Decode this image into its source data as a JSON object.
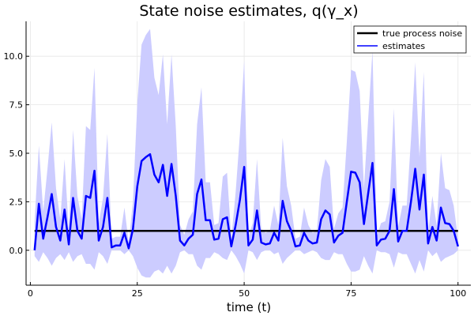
{
  "chart_data": {
    "type": "line",
    "title": "State noise estimates, q(γ_x)",
    "xlabel": "time (t)",
    "ylabel": "",
    "xlim": [
      -1,
      103
    ],
    "ylim": [
      -1.8,
      11.8
    ],
    "xticks": [
      0,
      25,
      50,
      75,
      100
    ],
    "yticks": [
      0.0,
      2.5,
      5.0,
      7.5,
      10.0
    ],
    "xtick_labels": [
      "0",
      "25",
      "50",
      "75",
      "100"
    ],
    "ytick_labels": [
      "0.0",
      "2.5",
      "5.0",
      "7.5",
      "10.0"
    ],
    "grid": true,
    "legend_position": "top-right",
    "x": [
      1,
      2,
      3,
      4,
      5,
      6,
      7,
      8,
      9,
      10,
      11,
      12,
      13,
      14,
      15,
      16,
      17,
      18,
      19,
      20,
      21,
      22,
      23,
      24,
      25,
      26,
      27,
      28,
      29,
      30,
      31,
      32,
      33,
      34,
      35,
      36,
      37,
      38,
      39,
      40,
      41,
      42,
      43,
      44,
      45,
      46,
      47,
      48,
      49,
      50,
      51,
      52,
      53,
      54,
      55,
      56,
      57,
      58,
      59,
      60,
      61,
      62,
      63,
      64,
      65,
      66,
      67,
      68,
      69,
      70,
      71,
      72,
      73,
      74,
      75,
      76,
      77,
      78,
      79,
      80,
      81,
      82,
      83,
      84,
      85,
      86,
      87,
      88,
      89,
      90,
      91,
      92,
      93,
      94,
      95,
      96,
      97,
      98,
      99,
      100
    ],
    "series": [
      {
        "name": "true process noise",
        "color": "#000000",
        "values": [
          1,
          1,
          1,
          1,
          1,
          1,
          1,
          1,
          1,
          1,
          1,
          1,
          1,
          1,
          1,
          1,
          1,
          1,
          1,
          1,
          1,
          1,
          1,
          1,
          1,
          1,
          1,
          1,
          1,
          1,
          1,
          1,
          1,
          1,
          1,
          1,
          1,
          1,
          1,
          1,
          1,
          1,
          1,
          1,
          1,
          1,
          1,
          1,
          1,
          1,
          1,
          1,
          1,
          1,
          1,
          1,
          1,
          1,
          1,
          1,
          1,
          1,
          1,
          1,
          1,
          1,
          1,
          1,
          1,
          1,
          1,
          1,
          1,
          1,
          1,
          1,
          1,
          1,
          1,
          1,
          1,
          1,
          1,
          1,
          1,
          1,
          1,
          1,
          1,
          1,
          1,
          1,
          1,
          1,
          1,
          1,
          1,
          1,
          1,
          1
        ]
      },
      {
        "name": "estimates",
        "color": "#0000ff",
        "band_color": "#ccccff",
        "values": [
          0.0,
          2.4,
          0.6,
          1.7,
          2.9,
          1.2,
          0.5,
          2.1,
          0.3,
          2.7,
          1.0,
          0.6,
          2.8,
          2.7,
          4.1,
          0.5,
          1.2,
          2.7,
          0.15,
          0.25,
          0.25,
          0.9,
          0.1,
          1.1,
          3.3,
          4.6,
          4.8,
          4.95,
          3.9,
          3.5,
          4.4,
          2.8,
          4.45,
          2.8,
          0.5,
          0.25,
          0.6,
          0.8,
          2.9,
          3.65,
          1.55,
          1.55,
          0.55,
          0.6,
          1.6,
          1.7,
          0.2,
          1.3,
          2.6,
          4.3,
          0.25,
          0.55,
          2.05,
          0.4,
          0.3,
          0.35,
          0.9,
          0.5,
          2.55,
          1.5,
          1.0,
          0.2,
          0.25,
          0.9,
          0.5,
          0.35,
          0.4,
          1.6,
          2.05,
          1.85,
          0.4,
          0.75,
          0.9,
          2.5,
          4.05,
          4.0,
          3.5,
          1.35,
          2.95,
          4.5,
          0.25,
          0.55,
          0.6,
          1.0,
          3.15,
          0.45,
          1.0,
          1.0,
          2.5,
          4.2,
          2.1,
          3.9,
          0.35,
          1.2,
          0.5,
          2.2,
          1.4,
          1.35,
          1.0,
          0.2
        ],
        "upper": [
          1.5,
          5.4,
          2.0,
          4.2,
          6.6,
          3.2,
          1.6,
          4.7,
          1.0,
          6.2,
          2.8,
          1.6,
          6.4,
          6.2,
          9.4,
          1.4,
          2.7,
          6.0,
          0.6,
          0.7,
          0.7,
          2.2,
          0.4,
          2.5,
          7.6,
          10.6,
          11.1,
          11.4,
          8.9,
          8.0,
          10.1,
          6.5,
          10.1,
          6.4,
          1.3,
          0.8,
          1.6,
          2.0,
          6.5,
          8.4,
          3.5,
          3.5,
          1.3,
          1.4,
          3.8,
          4.0,
          0.6,
          3.0,
          6.0,
          9.8,
          0.7,
          1.4,
          4.7,
          1.1,
          0.9,
          1.0,
          2.3,
          1.3,
          5.8,
          3.3,
          2.3,
          0.6,
          0.7,
          2.2,
          1.3,
          0.9,
          1.0,
          3.6,
          4.7,
          4.3,
          1.1,
          1.9,
          2.2,
          5.6,
          9.3,
          9.2,
          8.2,
          3.2,
          6.8,
          10.3,
          0.7,
          1.4,
          1.5,
          2.5,
          7.3,
          1.2,
          2.3,
          2.3,
          5.7,
          9.7,
          4.8,
          9.2,
          0.9,
          2.8,
          1.3,
          5.0,
          3.2,
          3.1,
          2.3,
          0.6
        ],
        "lower": [
          -0.3,
          -0.6,
          -0.1,
          -0.4,
          -0.8,
          -0.4,
          -0.2,
          -0.5,
          -0.1,
          -0.6,
          -0.3,
          -0.2,
          -0.7,
          -0.7,
          -1.0,
          -0.1,
          -0.3,
          -0.7,
          0.0,
          0.0,
          0.0,
          -0.2,
          0.0,
          -0.3,
          -0.9,
          -1.3,
          -1.4,
          -1.4,
          -1.1,
          -1.0,
          -1.2,
          -0.8,
          -1.2,
          -0.8,
          -0.1,
          0.0,
          -0.2,
          -0.2,
          -0.8,
          -1.0,
          -0.4,
          -0.4,
          -0.1,
          -0.2,
          -0.4,
          -0.5,
          0.0,
          -0.3,
          -0.7,
          -1.2,
          0.0,
          -0.1,
          -0.5,
          -0.1,
          0.0,
          0.0,
          -0.2,
          -0.1,
          -0.7,
          -0.4,
          -0.2,
          0.0,
          0.0,
          -0.2,
          -0.1,
          0.0,
          -0.1,
          -0.4,
          -0.5,
          -0.5,
          -0.1,
          -0.2,
          -0.2,
          -0.7,
          -1.1,
          -1.1,
          -1.0,
          -0.3,
          -0.8,
          -1.2,
          0.0,
          -0.1,
          -0.1,
          -0.2,
          -0.9,
          -0.1,
          -0.2,
          -0.2,
          -0.7,
          -1.2,
          -0.5,
          -1.1,
          0.0,
          -0.3,
          -0.1,
          -0.6,
          -0.4,
          -0.3,
          -0.2,
          0.0
        ]
      }
    ]
  }
}
